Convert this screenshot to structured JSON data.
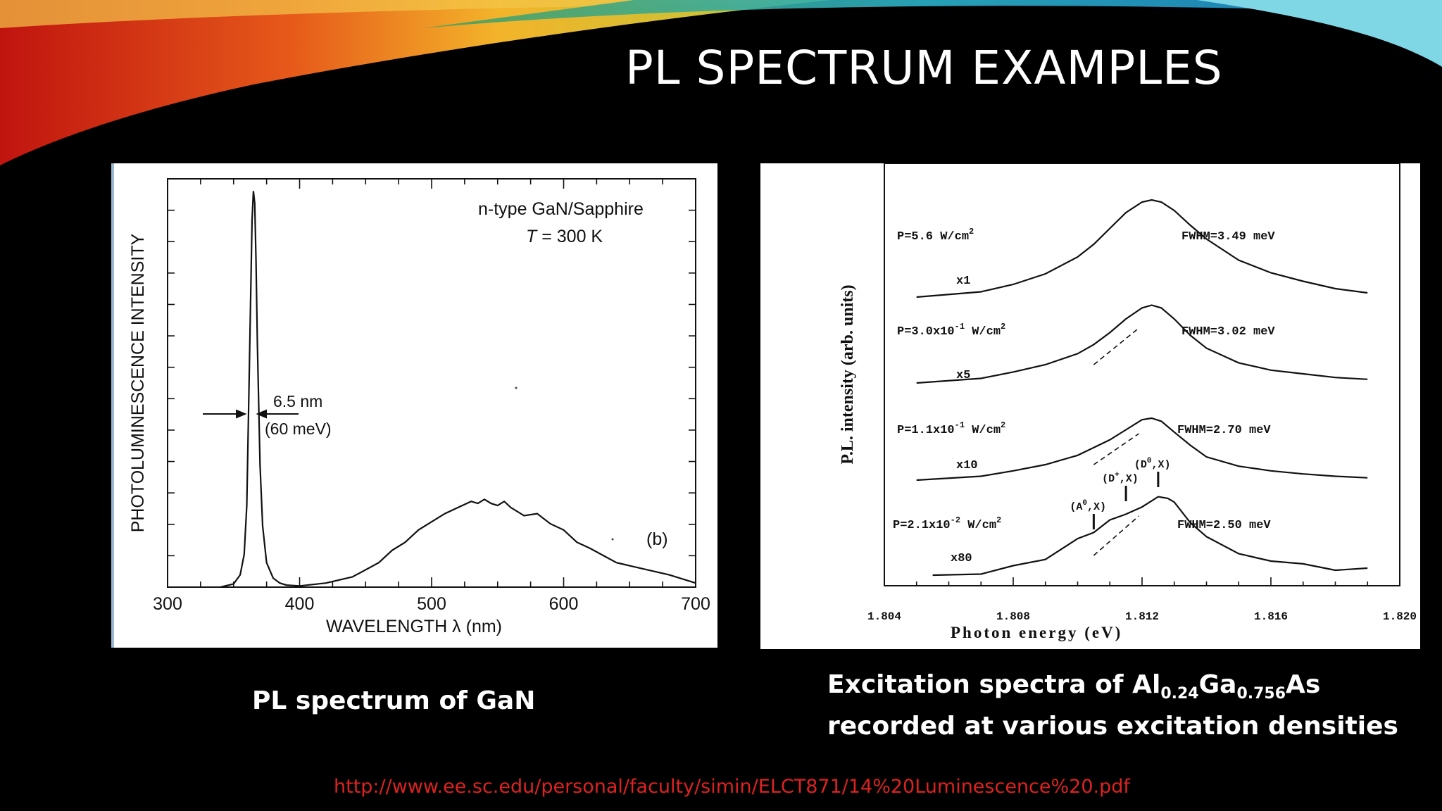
{
  "slide": {
    "title": "PL SPECTRUM EXAMPLES",
    "caption_left": "PL spectrum of GaN",
    "caption_right": {
      "line1_prefix": "Excitation spectra of Al",
      "sub1": "0.24",
      "middle": "Ga",
      "sub2": "0.756",
      "suffix": "As",
      "line2": "recorded at various excitation densities"
    },
    "source_url": "http://www.ee.sc.edu/personal/faculty/simin/ELCT871/14%20Luminescence%20.pdf",
    "colors": {
      "background": "#000000",
      "title": "#ffffff",
      "url": "#dd2222"
    }
  },
  "chart_data": [
    {
      "type": "line",
      "xlabel": "WAVELENGTH λ (nm)",
      "ylabel": "PHOTOLUMINESCENCE  INTENSITY",
      "xlim": [
        300,
        700
      ],
      "ylim": [
        0,
        10
      ],
      "x_ticks": [
        "300",
        "400",
        "500",
        "600",
        "700"
      ],
      "annotations": {
        "sample": "n-type GaN/Sapphire",
        "temp_italic": "T",
        "temp_rest": " = 300 K",
        "fwhm_nm": "6.5 nm",
        "fwhm_mev": "(60 meV)",
        "panel_label": "(b)"
      },
      "series": [
        {
          "x": [
            340,
            350,
            355,
            358,
            360,
            362,
            364,
            365,
            366,
            367,
            368,
            370,
            372,
            375,
            380,
            385,
            390,
            400,
            420,
            440,
            460,
            470,
            480,
            490,
            500,
            510,
            520,
            530,
            535,
            540,
            545,
            550,
            555,
            560,
            570,
            580,
            590,
            600,
            610,
            620,
            640,
            660,
            680,
            700
          ],
          "y": [
            0,
            0.08,
            0.3,
            0.8,
            2.0,
            5.5,
            9.0,
            9.7,
            9.4,
            8.0,
            6.0,
            3.0,
            1.5,
            0.6,
            0.22,
            0.1,
            0.05,
            0.03,
            0.1,
            0.25,
            0.6,
            0.9,
            1.1,
            1.4,
            1.6,
            1.8,
            1.95,
            2.1,
            2.05,
            2.15,
            2.05,
            2.0,
            2.1,
            1.95,
            1.75,
            1.8,
            1.55,
            1.4,
            1.1,
            0.95,
            0.6,
            0.45,
            0.3,
            0.1
          ]
        }
      ]
    },
    {
      "type": "line",
      "xlabel": "Photon energy (eV)",
      "ylabel": "P.L. intensity (arb. units)",
      "xlim": [
        1.804,
        1.82
      ],
      "x_ticks": [
        "1.804",
        "1.808",
        "1.812",
        "1.816",
        "1.820"
      ],
      "series": [
        {
          "power": "P=5.6 W/cm",
          "exp": "2",
          "scale": "x1",
          "fwhm": "FWHM=3.49 meV",
          "offset": 3,
          "x": [
            1.805,
            1.807,
            1.808,
            1.809,
            1.81,
            1.8105,
            1.811,
            1.8115,
            1.812,
            1.8123,
            1.8126,
            1.813,
            1.8135,
            1.814,
            1.815,
            1.816,
            1.817,
            1.818,
            1.819
          ],
          "y": [
            0.0,
            0.05,
            0.12,
            0.22,
            0.38,
            0.5,
            0.65,
            0.8,
            0.9,
            0.92,
            0.9,
            0.82,
            0.68,
            0.55,
            0.35,
            0.23,
            0.15,
            0.08,
            0.04
          ]
        },
        {
          "power": "P=3.0x10",
          "exp": "-1",
          "power_tail": " W/cm",
          "exp2": "2",
          "scale": "x5",
          "fwhm": "FWHM=3.02 meV",
          "offset": 2,
          "x": [
            1.805,
            1.807,
            1.808,
            1.809,
            1.81,
            1.8105,
            1.811,
            1.8115,
            1.812,
            1.8123,
            1.8126,
            1.813,
            1.8135,
            1.814,
            1.815,
            1.816,
            1.817,
            1.818,
            1.819
          ],
          "y": [
            0.0,
            0.05,
            0.12,
            0.2,
            0.32,
            0.42,
            0.55,
            0.7,
            0.82,
            0.85,
            0.82,
            0.7,
            0.52,
            0.38,
            0.22,
            0.14,
            0.1,
            0.06,
            0.04
          ]
        },
        {
          "power": "P=1.1x10",
          "exp": "-1",
          "power_tail": " W/cm",
          "exp2": "2",
          "scale": "x10",
          "fwhm": "FWHM=2.70 meV",
          "offset": 1,
          "x": [
            1.805,
            1.807,
            1.808,
            1.809,
            1.81,
            1.8105,
            1.811,
            1.8115,
            1.812,
            1.8123,
            1.8126,
            1.813,
            1.8135,
            1.814,
            1.815,
            1.816,
            1.817,
            1.818,
            1.819
          ],
          "y": [
            0.0,
            0.05,
            0.12,
            0.2,
            0.32,
            0.42,
            0.52,
            0.65,
            0.78,
            0.8,
            0.76,
            0.62,
            0.45,
            0.3,
            0.18,
            0.12,
            0.08,
            0.05,
            0.03
          ]
        },
        {
          "power": "P=2.1x10",
          "exp": "-2",
          "power_tail": " W/cm",
          "exp2": "2",
          "scale": "x80",
          "fwhm": "FWHM=2.50 meV",
          "offset": 0,
          "x": [
            1.8055,
            1.807,
            1.808,
            1.809,
            1.81,
            1.8105,
            1.811,
            1.8115,
            1.812,
            1.8125,
            1.8128,
            1.813,
            1.8135,
            1.814,
            1.815,
            1.816,
            1.817,
            1.818,
            1.819
          ],
          "y": [
            0.0,
            0.02,
            0.08,
            0.18,
            0.35,
            0.45,
            0.55,
            0.62,
            0.7,
            0.78,
            0.8,
            0.72,
            0.55,
            0.38,
            0.22,
            0.15,
            0.1,
            0.07,
            0.05
          ],
          "peak_labels": [
            {
              "text": "(A",
              "sup": "0",
              "tail": ",X)",
              "x": 1.8105
            },
            {
              "text": "(D",
              "sup": "+",
              "tail": ",X)",
              "x": 1.8115
            },
            {
              "text": "(D",
              "sup": "0",
              "tail": ",X)",
              "x": 1.8125
            }
          ]
        }
      ]
    }
  ]
}
